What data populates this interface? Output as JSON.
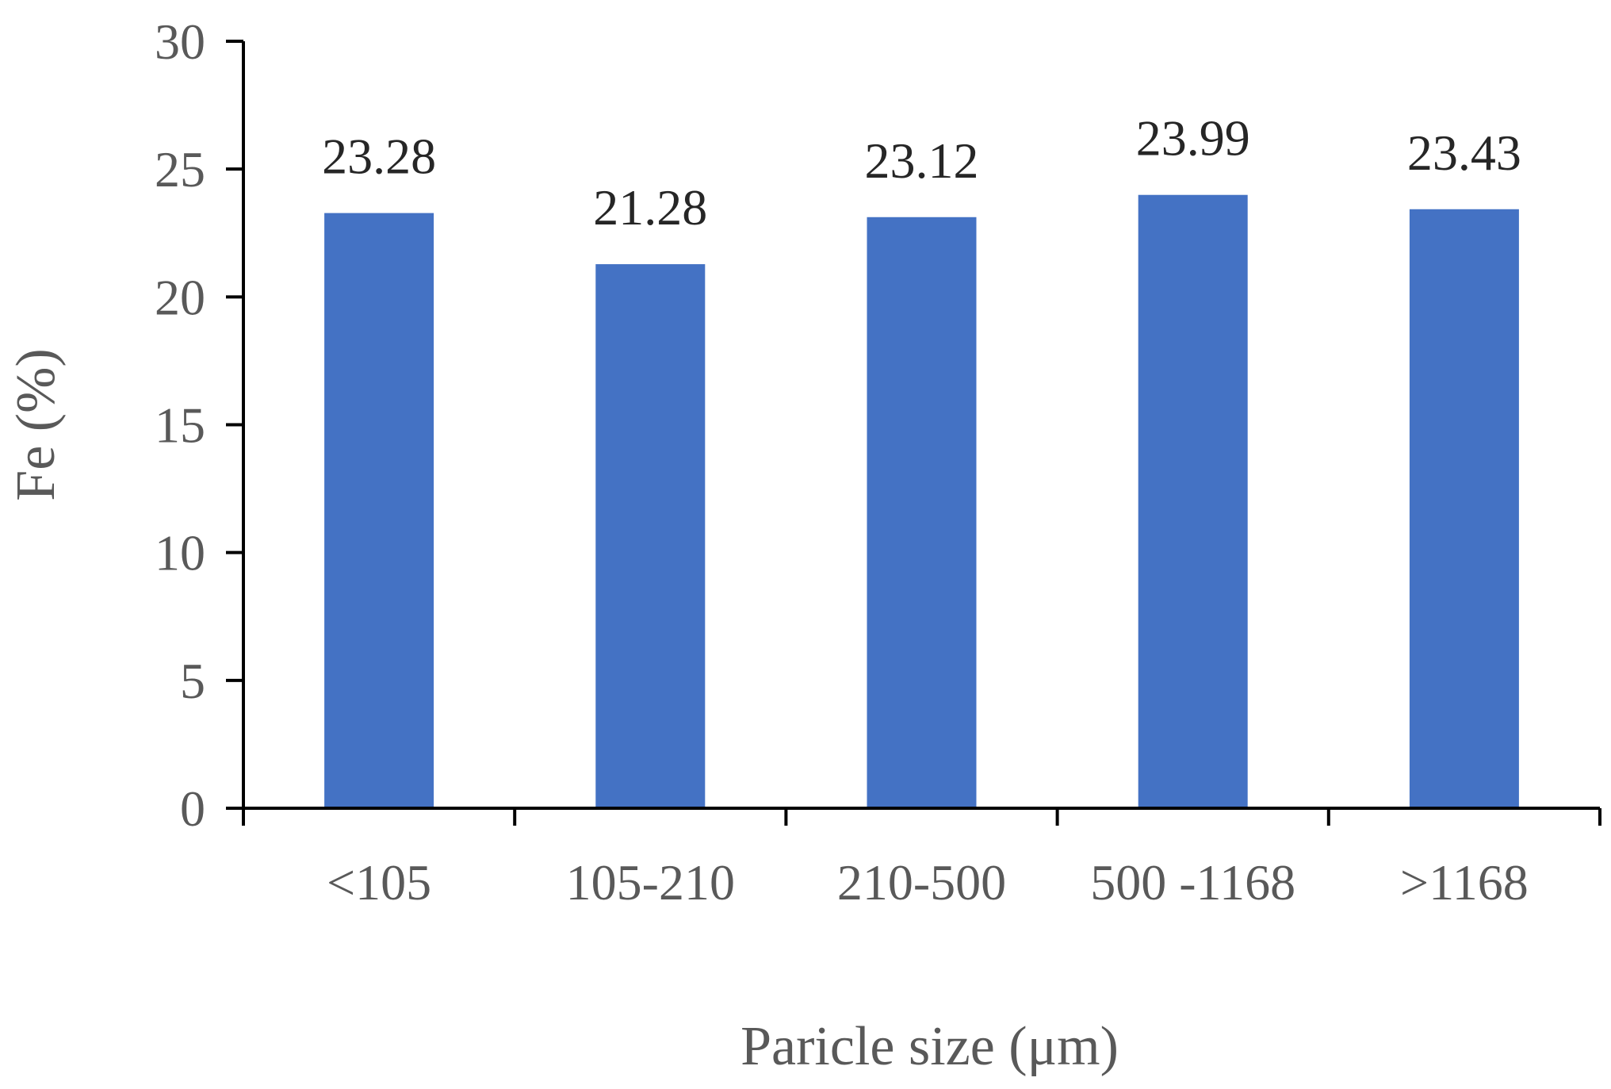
{
  "chart_data": {
    "type": "bar",
    "title": "",
    "xlabel": "Paricle size (μm)",
    "ylabel": "Fe (%)",
    "categories": [
      "<105",
      "105-210",
      "210-500",
      "500 -1168",
      ">1168"
    ],
    "values": [
      23.28,
      21.28,
      23.12,
      23.99,
      23.43
    ],
    "data_labels": [
      "23.28",
      "21.28",
      "23.12",
      "23.99",
      "23.43"
    ],
    "ylim": [
      0,
      30
    ],
    "yticks": [
      0,
      5,
      10,
      15,
      20,
      25,
      30
    ],
    "grid": false,
    "legend": "none",
    "bar_color": "#4472C4",
    "axis_color": "#000000",
    "text_color": "#595959"
  }
}
